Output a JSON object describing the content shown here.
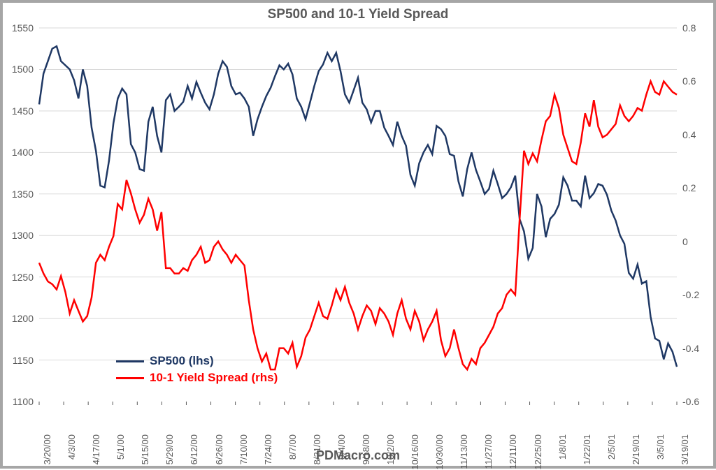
{
  "chart": {
    "type": "line-dual-axis",
    "title": "SP500 and 10-1 Yield Spread",
    "footer": "PDMacro.com",
    "background_color": "#ffffff",
    "border_color": "#a6a6a6",
    "grid_color": "#d9d9d9",
    "text_color": "#595959",
    "title_fontsize": 19,
    "axis_fontsize": 14,
    "line_width": 2.5,
    "y_left": {
      "min": 1100,
      "max": 1550,
      "step": 50,
      "ticks": [
        1100,
        1150,
        1200,
        1250,
        1300,
        1350,
        1400,
        1450,
        1500,
        1550
      ]
    },
    "y_right": {
      "min": -0.6,
      "max": 0.8,
      "step": 0.2,
      "ticks": [
        -0.6,
        -0.4,
        -0.2,
        0,
        0.2,
        0.4,
        0.6,
        0.8
      ]
    },
    "x_labels": [
      "3/20/00",
      "4/3/00",
      "4/17/00",
      "5/1/00",
      "5/15/00",
      "5/29/00",
      "6/12/00",
      "6/26/00",
      "7/10/00",
      "7/24/00",
      "8/7/00",
      "8/21/00",
      "9/4/00",
      "9/18/00",
      "10/2/00",
      "10/16/00",
      "10/30/00",
      "11/13/00",
      "11/27/00",
      "12/11/00",
      "12/25/00",
      "1/8/01",
      "1/22/01",
      "2/5/01",
      "2/19/01",
      "3/5/01",
      "3/19/01"
    ],
    "legend": [
      {
        "label": "SP500 (lhs)",
        "color": "#1f3864"
      },
      {
        "label": "10-1 Yield Spread (rhs)",
        "color": "#ff0000"
      }
    ],
    "series": {
      "sp500": {
        "color": "#1f3864",
        "axis": "left",
        "values": [
          1458,
          1495,
          1510,
          1525,
          1528,
          1510,
          1505,
          1500,
          1487,
          1465,
          1500,
          1480,
          1430,
          1402,
          1360,
          1358,
          1390,
          1435,
          1465,
          1477,
          1470,
          1410,
          1400,
          1380,
          1378,
          1437,
          1455,
          1420,
          1400,
          1463,
          1470,
          1450,
          1455,
          1461,
          1480,
          1465,
          1485,
          1472,
          1460,
          1452,
          1470,
          1495,
          1510,
          1503,
          1480,
          1470,
          1472,
          1465,
          1455,
          1420,
          1440,
          1455,
          1468,
          1478,
          1492,
          1505,
          1500,
          1507,
          1494,
          1465,
          1455,
          1440,
          1460,
          1480,
          1498,
          1506,
          1520,
          1510,
          1520,
          1498,
          1470,
          1460,
          1475,
          1490,
          1460,
          1452,
          1436,
          1450,
          1450,
          1430,
          1420,
          1409,
          1437,
          1420,
          1408,
          1373,
          1360,
          1387,
          1400,
          1409,
          1398,
          1432,
          1428,
          1420,
          1398,
          1396,
          1365,
          1347,
          1380,
          1400,
          1379,
          1365,
          1350,
          1356,
          1378,
          1362,
          1345,
          1350,
          1358,
          1372,
          1320,
          1305,
          1272,
          1285,
          1350,
          1335,
          1298,
          1320,
          1326,
          1337,
          1370,
          1360,
          1342,
          1342,
          1335,
          1372,
          1345,
          1351,
          1362,
          1360,
          1349,
          1330,
          1318,
          1300,
          1290,
          1255,
          1248,
          1265,
          1242,
          1245,
          1202,
          1176,
          1173,
          1151,
          1170,
          1160,
          1142
        ]
      },
      "spread": {
        "color": "#ff0000",
        "axis": "right",
        "values": [
          -0.08,
          -0.12,
          -0.15,
          -0.16,
          -0.18,
          -0.13,
          -0.19,
          -0.27,
          -0.22,
          -0.26,
          -0.3,
          -0.28,
          -0.21,
          -0.08,
          -0.05,
          -0.07,
          -0.02,
          0.02,
          0.14,
          0.12,
          0.23,
          0.18,
          0.12,
          0.07,
          0.1,
          0.16,
          0.12,
          0.04,
          0.11,
          -0.1,
          -0.1,
          -0.12,
          -0.12,
          -0.1,
          -0.11,
          -0.07,
          -0.05,
          -0.02,
          -0.08,
          -0.07,
          -0.02,
          0.0,
          -0.03,
          -0.05,
          -0.08,
          -0.05,
          -0.07,
          -0.09,
          -0.22,
          -0.33,
          -0.4,
          -0.45,
          -0.42,
          -0.48,
          -0.48,
          -0.4,
          -0.4,
          -0.42,
          -0.38,
          -0.47,
          -0.43,
          -0.36,
          -0.33,
          -0.28,
          -0.23,
          -0.28,
          -0.29,
          -0.24,
          -0.18,
          -0.22,
          -0.17,
          -0.23,
          -0.27,
          -0.33,
          -0.28,
          -0.24,
          -0.26,
          -0.31,
          -0.25,
          -0.27,
          -0.3,
          -0.35,
          -0.27,
          -0.22,
          -0.29,
          -0.33,
          -0.26,
          -0.3,
          -0.37,
          -0.33,
          -0.3,
          -0.26,
          -0.37,
          -0.43,
          -0.4,
          -0.33,
          -0.4,
          -0.46,
          -0.48,
          -0.44,
          -0.46,
          -0.4,
          -0.38,
          -0.35,
          -0.32,
          -0.27,
          -0.25,
          -0.2,
          -0.18,
          -0.2,
          0.08,
          0.34,
          0.29,
          0.33,
          0.3,
          0.38,
          0.45,
          0.47,
          0.55,
          0.5,
          0.4,
          0.35,
          0.3,
          0.29,
          0.37,
          0.48,
          0.43,
          0.53,
          0.43,
          0.39,
          0.4,
          0.42,
          0.44,
          0.51,
          0.47,
          0.45,
          0.47,
          0.5,
          0.49,
          0.55,
          0.6,
          0.56,
          0.55,
          0.6,
          0.58,
          0.56,
          0.55
        ]
      }
    }
  }
}
